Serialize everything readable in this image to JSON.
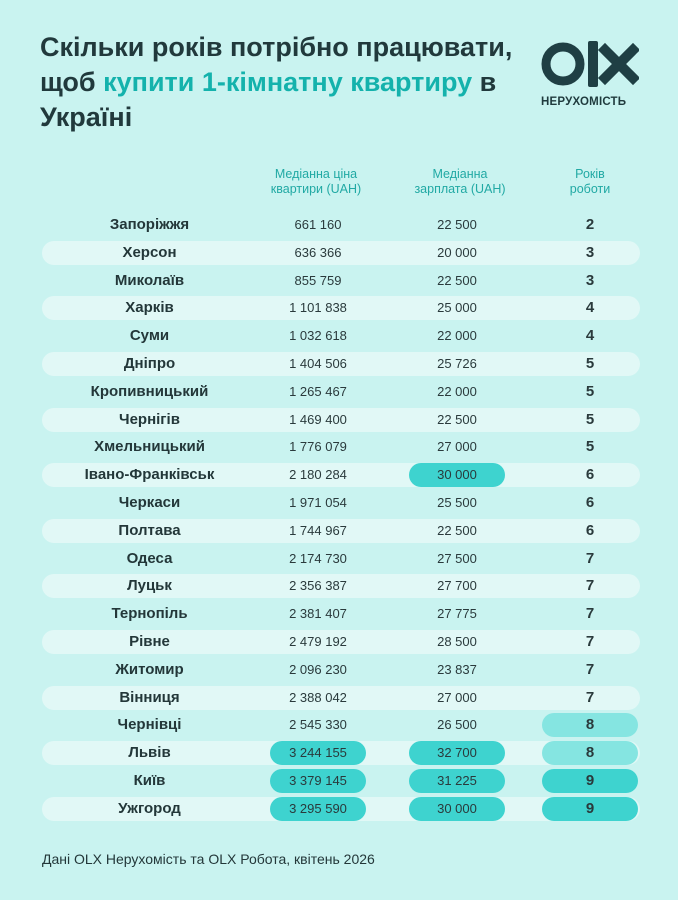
{
  "title": {
    "part1": "Скільки років потрібно працювати, щоб ",
    "highlight": "купити 1-кімнатну квартиру",
    "part2": " в Україні"
  },
  "brand": {
    "logo_text": "OLX",
    "subtitle": "НЕРУХОМІСТЬ"
  },
  "colors": {
    "background": "#c9f3f0",
    "accent": "#14b2ac",
    "pill_strong": "#3ed3cf",
    "pill_light": "#85e5e1",
    "row_band": "#e1f8f6",
    "logo": "#1f3f44"
  },
  "chart_data": {
    "type": "table",
    "title": "Скільки років потрібно працювати, щоб купити 1-кімнатну квартиру в Україні",
    "columns": [
      "",
      "Медіанна ціна квартири (UAH)",
      "Медіанна зарплата (UAH)",
      "Років роботи"
    ],
    "rows": [
      {
        "city": "Запоріжжя",
        "price": "661 160",
        "salary": "22 500",
        "years": "2",
        "hl_price": "",
        "hl_salary": "",
        "hl_years": ""
      },
      {
        "city": "Херсон",
        "price": "636 366",
        "salary": "20 000",
        "years": "3",
        "hl_price": "",
        "hl_salary": "",
        "hl_years": ""
      },
      {
        "city": "Миколаїв",
        "price": "855 759",
        "salary": "22 500",
        "years": "3",
        "hl_price": "",
        "hl_salary": "",
        "hl_years": ""
      },
      {
        "city": "Харків",
        "price": "1 101 838",
        "salary": "25 000",
        "years": "4",
        "hl_price": "",
        "hl_salary": "",
        "hl_years": ""
      },
      {
        "city": "Суми",
        "price": "1 032 618",
        "salary": "22 000",
        "years": "4",
        "hl_price": "",
        "hl_salary": "",
        "hl_years": ""
      },
      {
        "city": "Дніпро",
        "price": "1 404 506",
        "salary": "25 726",
        "years": "5",
        "hl_price": "",
        "hl_salary": "",
        "hl_years": ""
      },
      {
        "city": "Кропивницький",
        "price": "1 265 467",
        "salary": "22 000",
        "years": "5",
        "hl_price": "",
        "hl_salary": "",
        "hl_years": ""
      },
      {
        "city": "Чернігів",
        "price": "1 469 400",
        "salary": "22 500",
        "years": "5",
        "hl_price": "",
        "hl_salary": "",
        "hl_years": ""
      },
      {
        "city": "Хмельницький",
        "price": "1 776 079",
        "salary": "27 000",
        "years": "5",
        "hl_price": "",
        "hl_salary": "",
        "hl_years": ""
      },
      {
        "city": "Івано-Франківськ",
        "price": "2 180 284",
        "salary": "30 000",
        "years": "6",
        "hl_price": "",
        "hl_salary": "strong",
        "hl_years": ""
      },
      {
        "city": "Черкаси",
        "price": "1 971 054",
        "salary": "25 500",
        "years": "6",
        "hl_price": "",
        "hl_salary": "",
        "hl_years": ""
      },
      {
        "city": "Полтава",
        "price": "1 744 967",
        "salary": "22 500",
        "years": "6",
        "hl_price": "",
        "hl_salary": "",
        "hl_years": ""
      },
      {
        "city": "Одеса",
        "price": "2 174 730",
        "salary": "27 500",
        "years": "7",
        "hl_price": "",
        "hl_salary": "",
        "hl_years": ""
      },
      {
        "city": "Луцьк",
        "price": "2 356 387",
        "salary": "27 700",
        "years": "7",
        "hl_price": "",
        "hl_salary": "",
        "hl_years": ""
      },
      {
        "city": "Тернопіль",
        "price": "2 381 407",
        "salary": "27 775",
        "years": "7",
        "hl_price": "",
        "hl_salary": "",
        "hl_years": ""
      },
      {
        "city": "Рівне",
        "price": "2 479 192",
        "salary": "28 500",
        "years": "7",
        "hl_price": "",
        "hl_salary": "",
        "hl_years": ""
      },
      {
        "city": "Житомир",
        "price": "2 096 230",
        "salary": "23 837",
        "years": "7",
        "hl_price": "",
        "hl_salary": "",
        "hl_years": ""
      },
      {
        "city": "Вінниця",
        "price": "2 388 042",
        "salary": "27 000",
        "years": "7",
        "hl_price": "",
        "hl_salary": "",
        "hl_years": ""
      },
      {
        "city": "Чернівці",
        "price": "2 545 330",
        "salary": "26 500",
        "years": "8",
        "hl_price": "",
        "hl_salary": "",
        "hl_years": "light"
      },
      {
        "city": "Львів",
        "price": "3 244 155",
        "salary": "32 700",
        "years": "8",
        "hl_price": "strong",
        "hl_salary": "strong",
        "hl_years": "light"
      },
      {
        "city": "Київ",
        "price": "3 379 145",
        "salary": "31 225",
        "years": "9",
        "hl_price": "strong",
        "hl_salary": "strong",
        "hl_years": "strong"
      },
      {
        "city": "Ужгород",
        "price": "3 295 590",
        "salary": "30 000",
        "years": "9",
        "hl_price": "strong",
        "hl_salary": "strong",
        "hl_years": "strong"
      }
    ]
  },
  "headers": {
    "price_line1": "Медіанна ціна",
    "price_line2": "квартири (UAH)",
    "salary_line1": "Медіанна",
    "salary_line2": "зарплата (UAH)",
    "years_line1": "Років",
    "years_line2": "роботи"
  },
  "footer": "Дані OLX Нерухомість та OLX Робота, квітень 2026"
}
